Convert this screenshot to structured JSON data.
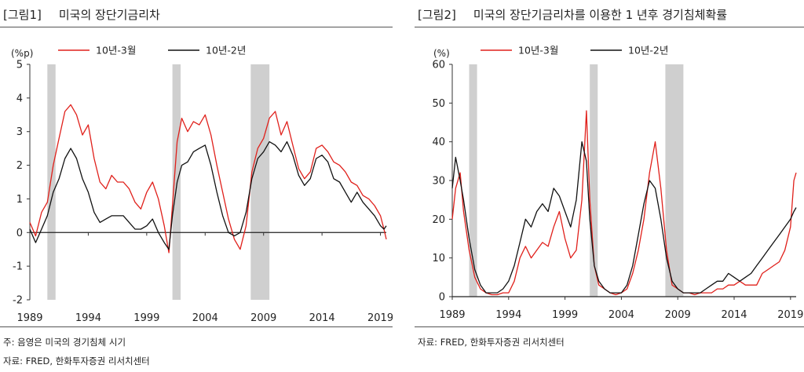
{
  "panel1": {
    "fig_label": "[그림1]",
    "title": "미국의 장단기금리차",
    "note": "주: 음영은 미국의 경기침체 시기",
    "source": "자료: FRED, 한화투자증권 리서치센터",
    "chart_data": {
      "type": "line",
      "ylabel": "(%p)",
      "ylim": [
        -2,
        5
      ],
      "yticks": [
        -2,
        -1,
        0,
        1,
        2,
        3,
        4,
        5
      ],
      "xlim": [
        1989,
        2019.5
      ],
      "xticks": [
        1989,
        1994,
        1999,
        2004,
        2009,
        2014,
        2019
      ],
      "xtick_labels": [
        "1989",
        "1994",
        "1999",
        "2004",
        "2009",
        "2014",
        "2019"
      ],
      "recessions": [
        [
          1990.5,
          1991.2
        ],
        [
          2001.2,
          2001.9
        ],
        [
          2007.9,
          2009.5
        ]
      ],
      "legend_position": "top",
      "series": [
        {
          "name": "10년-3월",
          "color": "#e0201b",
          "x": [
            1989.0,
            1989.5,
            1990.0,
            1990.5,
            1991.0,
            1991.5,
            1992.0,
            1992.5,
            1993.0,
            1993.5,
            1994.0,
            1994.5,
            1995.0,
            1995.5,
            1996.0,
            1996.5,
            1997.0,
            1997.5,
            1998.0,
            1998.5,
            1999.0,
            1999.5,
            2000.0,
            2000.5,
            2000.9,
            2001.2,
            2001.6,
            2002.0,
            2002.5,
            2003.0,
            2003.5,
            2004.0,
            2004.5,
            2005.0,
            2005.5,
            2006.0,
            2006.5,
            2007.0,
            2007.5,
            2008.0,
            2008.5,
            2009.0,
            2009.5,
            2010.0,
            2010.5,
            2011.0,
            2011.5,
            2012.0,
            2012.5,
            2013.0,
            2013.5,
            2014.0,
            2014.5,
            2015.0,
            2015.5,
            2016.0,
            2016.5,
            2017.0,
            2017.5,
            2018.0,
            2018.5,
            2019.0,
            2019.3,
            2019.5
          ],
          "values": [
            0.3,
            -0.1,
            0.6,
            0.9,
            2.0,
            2.8,
            3.6,
            3.8,
            3.5,
            2.9,
            3.2,
            2.2,
            1.5,
            1.3,
            1.7,
            1.5,
            1.5,
            1.3,
            0.9,
            0.7,
            1.2,
            1.5,
            1.0,
            0.2,
            -0.6,
            0.8,
            2.7,
            3.4,
            3.0,
            3.3,
            3.2,
            3.5,
            2.9,
            2.0,
            1.2,
            0.4,
            -0.2,
            -0.5,
            0.2,
            1.8,
            2.5,
            2.8,
            3.4,
            3.6,
            2.9,
            3.3,
            2.6,
            1.9,
            1.6,
            1.8,
            2.5,
            2.6,
            2.4,
            2.1,
            2.0,
            1.8,
            1.5,
            1.4,
            1.1,
            1.0,
            0.8,
            0.5,
            0.1,
            -0.2
          ]
        },
        {
          "name": "10년-2년",
          "color": "#111111",
          "x": [
            1989.0,
            1989.5,
            1990.0,
            1990.5,
            1991.0,
            1991.5,
            1992.0,
            1992.5,
            1993.0,
            1993.5,
            1994.0,
            1994.5,
            1995.0,
            1995.5,
            1996.0,
            1996.5,
            1997.0,
            1997.5,
            1998.0,
            1998.5,
            1999.0,
            1999.5,
            2000.0,
            2000.5,
            2000.9,
            2001.2,
            2001.6,
            2002.0,
            2002.5,
            2003.0,
            2003.5,
            2004.0,
            2004.5,
            2005.0,
            2005.5,
            2006.0,
            2006.5,
            2007.0,
            2007.5,
            2008.0,
            2008.5,
            2009.0,
            2009.5,
            2010.0,
            2010.5,
            2011.0,
            2011.5,
            2012.0,
            2012.5,
            2013.0,
            2013.5,
            2014.0,
            2014.5,
            2015.0,
            2015.5,
            2016.0,
            2016.5,
            2017.0,
            2017.5,
            2018.0,
            2018.5,
            2019.0,
            2019.3,
            2019.5
          ],
          "values": [
            0.1,
            -0.3,
            0.1,
            0.5,
            1.2,
            1.6,
            2.2,
            2.5,
            2.2,
            1.6,
            1.2,
            0.6,
            0.3,
            0.4,
            0.5,
            0.5,
            0.5,
            0.3,
            0.1,
            0.1,
            0.2,
            0.4,
            0.0,
            -0.3,
            -0.5,
            0.5,
            1.5,
            2.0,
            2.1,
            2.4,
            2.5,
            2.6,
            2.0,
            1.2,
            0.5,
            0.0,
            -0.1,
            0.0,
            0.6,
            1.6,
            2.2,
            2.4,
            2.7,
            2.6,
            2.4,
            2.7,
            2.3,
            1.7,
            1.4,
            1.6,
            2.2,
            2.3,
            2.1,
            1.6,
            1.5,
            1.2,
            0.9,
            1.2,
            0.9,
            0.7,
            0.5,
            0.2,
            0.1,
            0.2
          ]
        }
      ]
    }
  },
  "panel2": {
    "fig_label": "[그림2]",
    "title": "미국의 장단기금리차를 이용한 1 년후 경기침체확률",
    "source": "자료: FRED, 한화투자증권 리서치센터",
    "chart_data": {
      "type": "line",
      "ylabel": "(%)",
      "ylim": [
        0,
        60
      ],
      "yticks": [
        0,
        10,
        20,
        30,
        40,
        50,
        60
      ],
      "xlim": [
        1989,
        2019.5
      ],
      "xticks": [
        1989,
        1994,
        1999,
        2004,
        2009,
        2014,
        2019
      ],
      "xtick_labels": [
        "1989",
        "1994",
        "1999",
        "2004",
        "2009",
        "2014",
        "2019"
      ],
      "recessions": [
        [
          1990.5,
          1991.2
        ],
        [
          2001.2,
          2001.9
        ],
        [
          2007.9,
          2009.5
        ]
      ],
      "legend_position": "top",
      "series": [
        {
          "name": "10년-3월",
          "color": "#e0201b",
          "x": [
            1989.0,
            1989.3,
            1989.7,
            1990.0,
            1990.5,
            1991.0,
            1991.5,
            1992.0,
            1992.5,
            1993.0,
            1993.5,
            1994.0,
            1994.5,
            1995.0,
            1995.5,
            1996.0,
            1996.5,
            1997.0,
            1997.5,
            1998.0,
            1998.5,
            1999.0,
            1999.5,
            2000.0,
            2000.5,
            2000.9,
            2001.2,
            2001.6,
            2002.0,
            2002.5,
            2003.0,
            2003.5,
            2004.0,
            2004.5,
            2005.0,
            2005.5,
            2006.0,
            2006.5,
            2007.0,
            2007.5,
            2008.0,
            2008.5,
            2009.0,
            2009.5,
            2010.0,
            2010.5,
            2011.0,
            2011.5,
            2012.0,
            2012.5,
            2013.0,
            2013.5,
            2014.0,
            2014.5,
            2015.0,
            2015.5,
            2016.0,
            2016.5,
            2017.0,
            2017.5,
            2018.0,
            2018.5,
            2019.0,
            2019.3,
            2019.5
          ],
          "values": [
            20,
            28,
            32,
            22,
            12,
            5,
            2,
            1,
            0.5,
            0.5,
            1,
            1,
            4,
            10,
            13,
            10,
            12,
            14,
            13,
            18,
            22,
            15,
            10,
            12,
            25,
            48,
            25,
            8,
            3,
            2,
            1,
            0.5,
            1,
            2,
            6,
            12,
            20,
            32,
            40,
            28,
            12,
            3,
            2,
            1,
            1,
            0.5,
            1,
            1,
            1,
            2,
            2,
            3,
            3,
            4,
            3,
            3,
            3,
            6,
            7,
            8,
            9,
            12,
            18,
            30,
            32
          ]
        },
        {
          "name": "10년-2년",
          "color": "#111111",
          "x": [
            1989.0,
            1989.3,
            1989.7,
            1990.0,
            1990.5,
            1991.0,
            1991.5,
            1992.0,
            1992.5,
            1993.0,
            1993.5,
            1994.0,
            1994.5,
            1995.0,
            1995.5,
            1996.0,
            1996.5,
            1997.0,
            1997.5,
            1998.0,
            1998.5,
            1999.0,
            1999.5,
            2000.0,
            2000.5,
            2000.9,
            2001.2,
            2001.6,
            2002.0,
            2002.5,
            2003.0,
            2003.5,
            2004.0,
            2004.5,
            2005.0,
            2005.5,
            2006.0,
            2006.5,
            2007.0,
            2007.5,
            2008.0,
            2008.5,
            2009.0,
            2009.5,
            2010.0,
            2010.5,
            2011.0,
            2011.5,
            2012.0,
            2012.5,
            2013.0,
            2013.5,
            2014.0,
            2014.5,
            2015.0,
            2015.5,
            2016.0,
            2016.5,
            2017.0,
            2017.5,
            2018.0,
            2018.5,
            2019.0,
            2019.3,
            2019.5
          ],
          "values": [
            28,
            36,
            30,
            25,
            15,
            7,
            3,
            1,
            1,
            1,
            2,
            4,
            8,
            14,
            20,
            18,
            22,
            24,
            22,
            28,
            26,
            22,
            18,
            25,
            40,
            35,
            20,
            8,
            4,
            2,
            1,
            1,
            1,
            3,
            8,
            16,
            24,
            30,
            28,
            20,
            10,
            4,
            2,
            1,
            1,
            1,
            1,
            2,
            3,
            4,
            4,
            6,
            5,
            4,
            5,
            6,
            8,
            10,
            12,
            14,
            16,
            18,
            20,
            22,
            23
          ]
        }
      ]
    }
  }
}
